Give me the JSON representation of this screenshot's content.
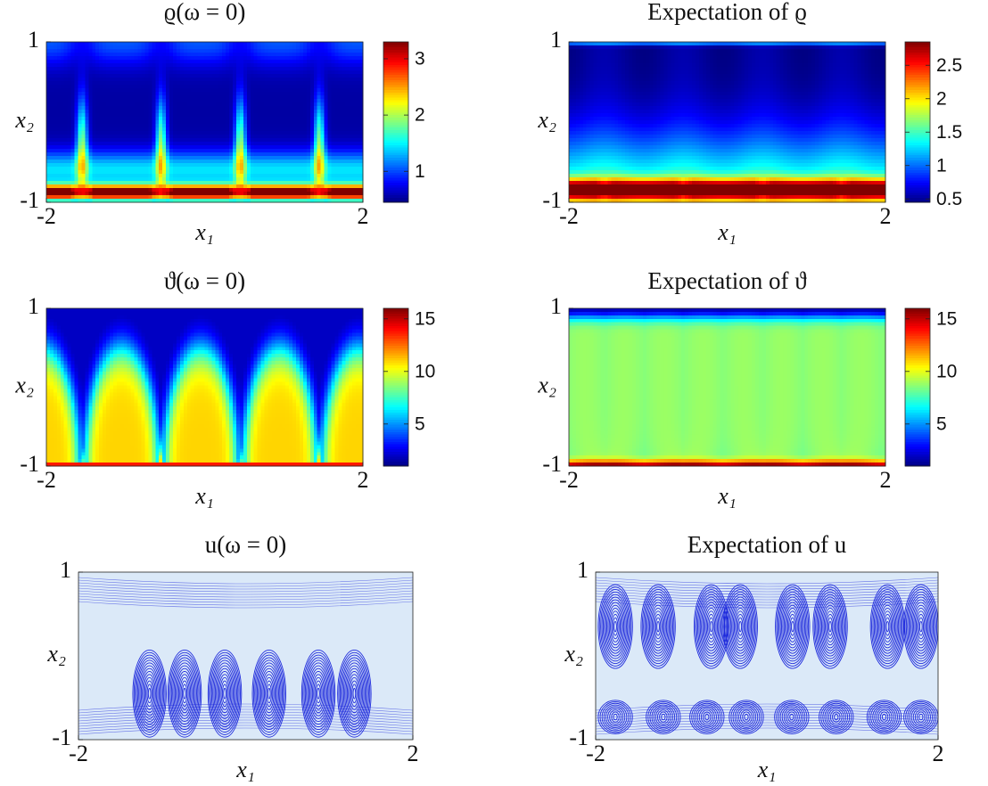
{
  "chart_data": [
    {
      "type": "heatmap",
      "title": "ϱ(ω = 0)",
      "xlabel": "x₁",
      "ylabel": "x₂",
      "xlim": [
        -2,
        2
      ],
      "ylim": [
        -1,
        1
      ],
      "xticks": [
        -2,
        2
      ],
      "yticks": [
        -1,
        1
      ],
      "clim": [
        0.45,
        3.3
      ],
      "colorbar_ticks": [
        1,
        2,
        3
      ],
      "colormap": "jet"
    },
    {
      "type": "heatmap",
      "title": "Expectation of ϱ",
      "xlabel": "x₁",
      "ylabel": "x₂",
      "xlim": [
        -2,
        2
      ],
      "ylim": [
        -1,
        1
      ],
      "xticks": [
        -2,
        2
      ],
      "yticks": [
        -1,
        1
      ],
      "clim": [
        0.45,
        2.85
      ],
      "colorbar_ticks": [
        0.5,
        1,
        1.5,
        2,
        2.5
      ],
      "colormap": "jet"
    },
    {
      "type": "heatmap",
      "title": "ϑ(ω = 0)",
      "xlabel": "x₁",
      "ylabel": "x₂",
      "xlim": [
        -2,
        2
      ],
      "ylim": [
        -1,
        1
      ],
      "xticks": [
        -2,
        2
      ],
      "yticks": [
        -1,
        1
      ],
      "clim": [
        1,
        16
      ],
      "colorbar_ticks": [
        5,
        10,
        15
      ],
      "colormap": "jet"
    },
    {
      "type": "heatmap",
      "title": "Expectation of ϑ",
      "xlabel": "x₁",
      "ylabel": "x₂",
      "xlim": [
        -2,
        2
      ],
      "ylim": [
        -1,
        1
      ],
      "xticks": [
        -2,
        2
      ],
      "yticks": [
        -1,
        1
      ],
      "clim": [
        1,
        16
      ],
      "colorbar_ticks": [
        5,
        10,
        15
      ],
      "colormap": "jet"
    },
    {
      "type": "streamline",
      "title": "u(ω = 0)",
      "xlabel": "x₁",
      "ylabel": "x₂",
      "xlim": [
        -2,
        2
      ],
      "ylim": [
        -1,
        1
      ],
      "xticks": [
        -2,
        2
      ],
      "yticks": [
        -1,
        1
      ],
      "color": "#1f2bdc"
    },
    {
      "type": "streamline",
      "title": "Expectation of u",
      "xlabel": "x₁",
      "ylabel": "x₂",
      "xlim": [
        -2,
        2
      ],
      "ylim": [
        -1,
        1
      ],
      "xticks": [
        -2,
        2
      ],
      "yticks": [
        -1,
        1
      ],
      "color": "#1f2bdc"
    }
  ]
}
